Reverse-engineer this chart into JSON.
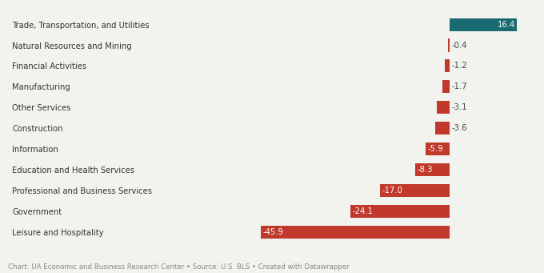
{
  "categories": [
    "Leisure and Hospitality",
    "Government",
    "Professional and Business Services",
    "Education and Health Services",
    "Information",
    "Construction",
    "Other Services",
    "Manufacturing",
    "Financial Activities",
    "Natural Resources and Mining",
    "Trade, Transportation, and Utilities"
  ],
  "values": [
    -45.9,
    -24.1,
    -17.0,
    -8.3,
    -5.9,
    -3.6,
    -3.1,
    -1.7,
    -1.2,
    -0.4,
    16.4
  ],
  "bar_colors": [
    "#c0392b",
    "#c0392b",
    "#c0392b",
    "#c0392b",
    "#c0392b",
    "#c0392b",
    "#c0392b",
    "#c0392b",
    "#c0392b",
    "#c0392b",
    "#1a6a72"
  ],
  "caption": "Chart: UA Economic and Business Research Center • Source: U.S. BLS • Created with Datawrapper",
  "background_color": "#f2f2ee",
  "bar_height": 0.62,
  "xlim": [
    -55,
    20
  ],
  "label_fontsize": 7.2,
  "category_fontsize": 7.2,
  "caption_fontsize": 6.2
}
